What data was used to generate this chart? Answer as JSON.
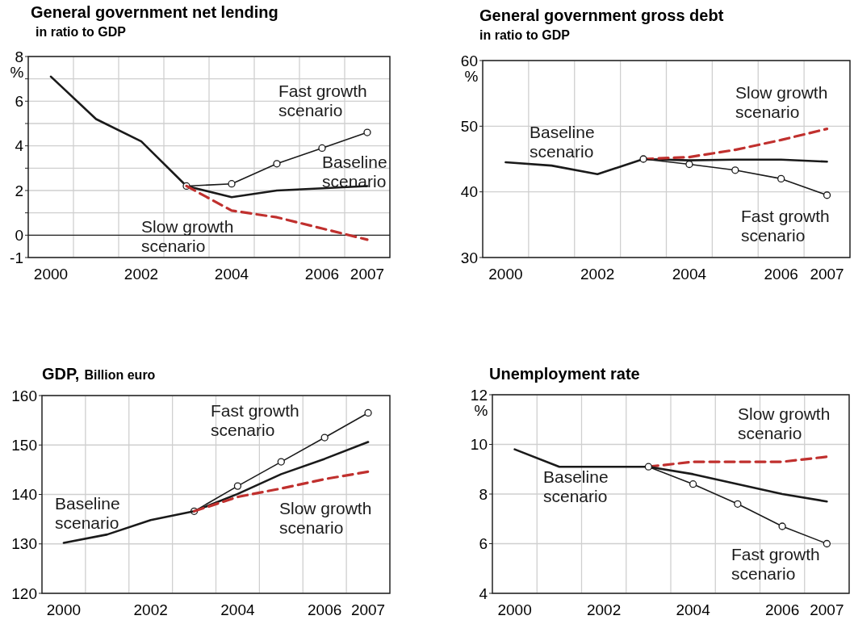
{
  "chart_data": [
    {
      "type": "line",
      "title": "General government net lending",
      "subtitle": "in ratio to GDP",
      "ylabel": "%",
      "categories": [
        "2000",
        null,
        "2002",
        null,
        "2004",
        null,
        "2006",
        "2007"
      ],
      "ylim": [
        -1,
        8
      ],
      "yticks": [
        -1,
        0,
        {
          "value": 1,
          "label": null
        },
        2,
        {
          "value": 3,
          "label": null
        },
        4,
        {
          "value": 5,
          "label": null
        },
        6,
        {
          "value": 7,
          "label": null
        },
        8
      ],
      "grid": true,
      "series": [
        {
          "name": "Baseline scenario",
          "color": "#1a1a1a",
          "marker": "none",
          "line_style": "solid",
          "values": [
            7.1,
            5.2,
            4.2,
            2.2,
            1.7,
            2.0,
            2.1,
            2.2
          ]
        },
        {
          "name": "Fast growth scenario",
          "color": "#1a1a1a",
          "marker": "circle",
          "line_style": "solid",
          "values": [
            null,
            null,
            null,
            2.2,
            2.3,
            3.2,
            3.9,
            4.6
          ]
        },
        {
          "name": "Slow growth scenario",
          "color": "#c0302e",
          "marker": "none",
          "line_style": "dashed",
          "values": [
            null,
            null,
            null,
            2.2,
            1.1,
            0.8,
            0.3,
            -0.2
          ]
        }
      ]
    },
    {
      "type": "line",
      "title": "General government gross debt",
      "subtitle": "in ratio to GDP",
      "ylabel": "%",
      "categories": [
        "2000",
        null,
        "2002",
        null,
        "2004",
        null,
        "2006",
        "2007"
      ],
      "ylim": [
        30,
        60
      ],
      "yticks": [
        30,
        40,
        50,
        60
      ],
      "grid": true,
      "series": [
        {
          "name": "Baseline scenario",
          "color": "#1a1a1a",
          "marker": "none",
          "line_style": "solid",
          "values": [
            44.5,
            44.0,
            42.7,
            45.0,
            44.8,
            44.9,
            44.9,
            44.6
          ]
        },
        {
          "name": "Slow growth scenario",
          "color": "#c0302e",
          "marker": "none",
          "line_style": "dashed",
          "values": [
            null,
            null,
            null,
            45.0,
            45.3,
            46.4,
            47.9,
            49.6
          ]
        },
        {
          "name": "Fast growth scenario",
          "color": "#1a1a1a",
          "marker": "circle",
          "line_style": "solid",
          "values": [
            null,
            null,
            null,
            45.0,
            44.2,
            43.3,
            42.0,
            39.5
          ]
        }
      ]
    },
    {
      "type": "line",
      "title": "GDP,",
      "subtitle": "Billion euro",
      "categories": [
        "2000",
        null,
        "2002",
        null,
        "2004",
        null,
        "2006",
        "2007"
      ],
      "ylim": [
        120,
        160
      ],
      "yticks": [
        120,
        130,
        140,
        150,
        160
      ],
      "grid": true,
      "series": [
        {
          "name": "Fast growth scenario",
          "color": "#1a1a1a",
          "marker": "circle",
          "line_style": "solid",
          "values": [
            null,
            null,
            null,
            136.6,
            141.7,
            146.6,
            151.5,
            156.5
          ]
        },
        {
          "name": "Baseline scenario",
          "color": "#1a1a1a",
          "marker": "none",
          "line_style": "solid",
          "values": [
            130.2,
            131.9,
            134.8,
            136.6,
            140.1,
            144.1,
            147.2,
            150.6
          ]
        },
        {
          "name": "Slow growth scenario",
          "color": "#c0302e",
          "marker": "none",
          "line_style": "dashed",
          "values": [
            null,
            null,
            null,
            136.6,
            139.5,
            141.2,
            143.1,
            144.6
          ]
        }
      ]
    },
    {
      "type": "line",
      "title": "Unemployment rate",
      "ylabel": "%",
      "categories": [
        "2000",
        null,
        "2002",
        null,
        "2004",
        null,
        "2006",
        "2007"
      ],
      "ylim": [
        4,
        12
      ],
      "yticks": [
        4,
        6,
        8,
        10,
        12
      ],
      "grid": true,
      "series": [
        {
          "name": "Slow growth scenario",
          "color": "#c0302e",
          "marker": "none",
          "line_style": "dashed",
          "values": [
            null,
            null,
            null,
            9.1,
            9.3,
            9.3,
            9.3,
            9.5
          ]
        },
        {
          "name": "Baseline scenario",
          "color": "#1a1a1a",
          "marker": "none",
          "line_style": "solid",
          "values": [
            9.8,
            9.1,
            9.1,
            9.1,
            8.8,
            8.4,
            8.0,
            7.7
          ]
        },
        {
          "name": "Fast growth scenario",
          "color": "#1a1a1a",
          "marker": "circle",
          "line_style": "solid",
          "values": [
            null,
            null,
            null,
            9.1,
            8.4,
            7.6,
            6.7,
            6.0
          ]
        }
      ]
    }
  ]
}
